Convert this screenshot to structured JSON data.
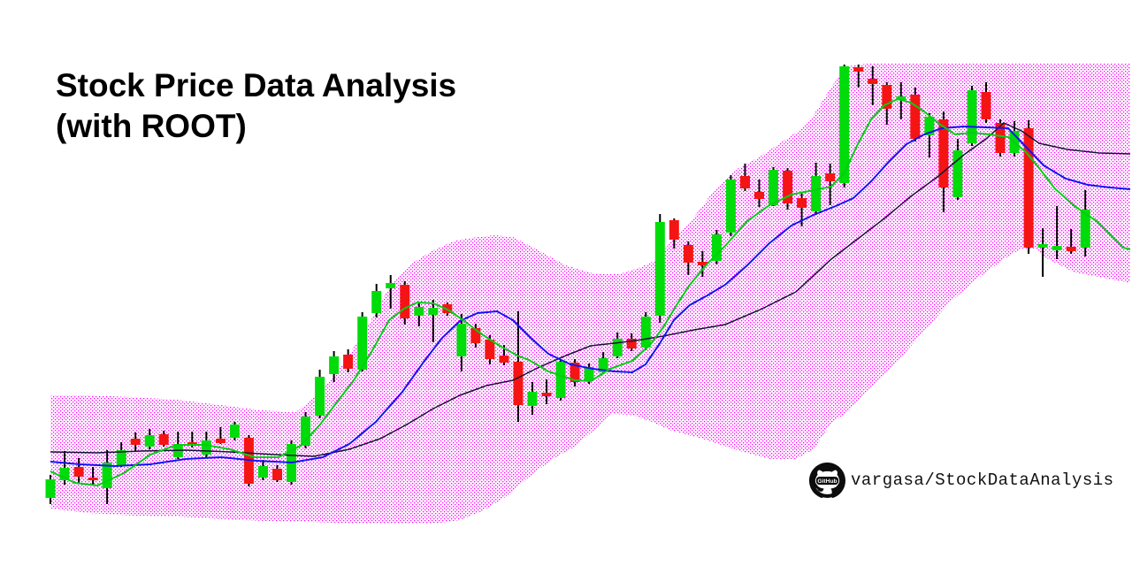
{
  "title": {
    "line1": "Stock Price Data Analysis",
    "line2": "(with ROOT)"
  },
  "attribution": {
    "logo_badge_text": "GitHub",
    "repo_label": "vargasa/StockDataAnalysis"
  },
  "chart_data": {
    "type": "candlestick",
    "title": "Stock Price Data Analysis (with ROOT)",
    "xlabel": "",
    "ylabel": "",
    "axes_visible": false,
    "grid": false,
    "legend_position": "none",
    "note": "No axis ticks or labels are shown in the figure; price values below are in relative units estimated from the plot, x values are plot positions.",
    "colors": {
      "up_candle": "#00dc0a",
      "down_candle": "#f51414",
      "wick": "#000000",
      "ma_fast": "#00ce12",
      "ma_mid": "#1414f0",
      "ma_slow": "#181238",
      "band_dots": "#ff00ff",
      "background": "#ffffff"
    },
    "candles_ohlc": [
      [
        15.4,
        20.6,
        14.0,
        19.6
      ],
      [
        19.4,
        26.0,
        18.4,
        22.2
      ],
      [
        22.4,
        24.4,
        18.6,
        20.2
      ],
      [
        20.0,
        22.4,
        18.4,
        19.4
      ],
      [
        17.6,
        26.2,
        14.0,
        23.4
      ],
      [
        22.6,
        28.0,
        22.4,
        26.2
      ],
      [
        28.8,
        30.2,
        26.0,
        27.4
      ],
      [
        27.0,
        31.0,
        26.4,
        29.6
      ],
      [
        29.8,
        30.6,
        27.0,
        27.4
      ],
      [
        24.6,
        30.4,
        24.2,
        27.6
      ],
      [
        28.0,
        30.4,
        26.8,
        27.4
      ],
      [
        25.2,
        30.4,
        24.6,
        28.4
      ],
      [
        28.8,
        31.4,
        27.6,
        27.8
      ],
      [
        29.0,
        32.6,
        28.4,
        32.0
      ],
      [
        29.0,
        29.6,
        18.0,
        18.6
      ],
      [
        20.0,
        24.0,
        19.4,
        22.6
      ],
      [
        22.0,
        22.8,
        19.0,
        19.4
      ],
      [
        19.0,
        28.4,
        18.4,
        27.6
      ],
      [
        27.2,
        34.8,
        26.6,
        33.8
      ],
      [
        34.0,
        44.4,
        33.4,
        42.8
      ],
      [
        43.4,
        48.6,
        41.6,
        47.4
      ],
      [
        47.8,
        49.0,
        43.8,
        44.6
      ],
      [
        44.4,
        57.4,
        44.0,
        56.4
      ],
      [
        57.2,
        63.8,
        56.2,
        62.2
      ],
      [
        62.8,
        65.8,
        58.2,
        64.0
      ],
      [
        63.6,
        64.4,
        54.6,
        56.0
      ],
      [
        56.6,
        59.6,
        54.2,
        58.6
      ],
      [
        56.8,
        60.2,
        50.6,
        58.4
      ],
      [
        59.2,
        59.6,
        56.6,
        57.2
      ],
      [
        47.4,
        57.0,
        44.0,
        54.8
      ],
      [
        53.8,
        54.8,
        49.4,
        50.4
      ],
      [
        51.2,
        52.2,
        45.6,
        46.8
      ],
      [
        47.6,
        50.0,
        45.4,
        46.0
      ],
      [
        46.2,
        57.6,
        32.6,
        36.4
      ],
      [
        36.2,
        41.6,
        34.2,
        39.4
      ],
      [
        39.2,
        42.2,
        36.6,
        38.4
      ],
      [
        38.0,
        46.8,
        37.4,
        46.2
      ],
      [
        46.0,
        46.8,
        40.6,
        41.6
      ],
      [
        42.0,
        45.8,
        41.2,
        45.0
      ],
      [
        43.8,
        48.4,
        43.4,
        47.0
      ],
      [
        47.4,
        52.8,
        47.0,
        51.4
      ],
      [
        51.4,
        52.6,
        48.6,
        49.2
      ],
      [
        49.4,
        57.4,
        48.8,
        56.4
      ],
      [
        56.6,
        79.6,
        55.0,
        77.8
      ],
      [
        78.2,
        78.6,
        71.8,
        73.8
      ],
      [
        72.6,
        73.4,
        65.8,
        68.6
      ],
      [
        68.8,
        71.2,
        65.4,
        68.0
      ],
      [
        69.0,
        76.0,
        68.2,
        75.0
      ],
      [
        75.4,
        88.4,
        74.6,
        87.4
      ],
      [
        88.2,
        91.0,
        84.8,
        85.4
      ],
      [
        84.6,
        87.4,
        81.2,
        83.0
      ],
      [
        81.6,
        90.2,
        81.4,
        89.6
      ],
      [
        89.4,
        90.0,
        80.6,
        82.0
      ],
      [
        83.2,
        84.2,
        76.8,
        81.0
      ],
      [
        80.2,
        91.2,
        79.4,
        88.2
      ],
      [
        88.8,
        91.0,
        81.6,
        87.0
      ],
      [
        86.6,
        113.4,
        85.6,
        113.0
      ],
      [
        112.8,
        113.4,
        108.2,
        111.8
      ],
      [
        110.2,
        113.0,
        104.2,
        109.0
      ],
      [
        108.8,
        109.4,
        99.8,
        103.4
      ],
      [
        105.4,
        109.4,
        101.0,
        106.2
      ],
      [
        106.6,
        108.2,
        96.0,
        96.6
      ],
      [
        97.4,
        102.4,
        92.4,
        101.6
      ],
      [
        101.0,
        102.8,
        80.0,
        85.6
      ],
      [
        83.4,
        96.6,
        82.8,
        94.0
      ],
      [
        95.6,
        108.6,
        95.0,
        107.6
      ],
      [
        107.2,
        109.4,
        100.2,
        101.0
      ],
      [
        100.2,
        101.0,
        92.6,
        93.4
      ],
      [
        93.4,
        100.6,
        92.6,
        98.4
      ],
      [
        99.0,
        100.8,
        70.6,
        72.0
      ],
      [
        72.0,
        76.4,
        65.4,
        72.8
      ],
      [
        71.4,
        81.4,
        69.4,
        72.4
      ],
      [
        72.2,
        76.2,
        70.6,
        71.2
      ],
      [
        72.0,
        85.0,
        70.0,
        80.6
      ]
    ],
    "overlays": {
      "ma_fast": {
        "name": "fast moving average",
        "points": [
          [
            57,
            21.4
          ],
          [
            85,
            18.8
          ],
          [
            110,
            18.2
          ],
          [
            140,
            21.0
          ],
          [
            170,
            25.2
          ],
          [
            200,
            27.4
          ],
          [
            232,
            27.4
          ],
          [
            260,
            26.4
          ],
          [
            288,
            24.6
          ],
          [
            315,
            24.6
          ],
          [
            340,
            27.2
          ],
          [
            362,
            32.0
          ],
          [
            380,
            36.8
          ],
          [
            400,
            42.0
          ],
          [
            420,
            48.4
          ],
          [
            440,
            55.6
          ],
          [
            457,
            58.2
          ],
          [
            472,
            59.6
          ],
          [
            490,
            59.4
          ],
          [
            508,
            57.8
          ],
          [
            525,
            55.4
          ],
          [
            545,
            52.4
          ],
          [
            565,
            49.8
          ],
          [
            585,
            47.6
          ],
          [
            598,
            46.6
          ],
          [
            620,
            44.0
          ],
          [
            650,
            42.0
          ],
          [
            668,
            41.8
          ],
          [
            690,
            44.6
          ],
          [
            715,
            46.4
          ],
          [
            735,
            50.0
          ],
          [
            750,
            54.0
          ],
          [
            765,
            59.0
          ],
          [
            780,
            63.6
          ],
          [
            800,
            68.4
          ],
          [
            820,
            72.4
          ],
          [
            845,
            78.0
          ],
          [
            870,
            81.6
          ],
          [
            895,
            84.0
          ],
          [
            920,
            85.0
          ],
          [
            940,
            85.8
          ],
          [
            955,
            89.0
          ],
          [
            970,
            95.4
          ],
          [
            985,
            101.0
          ],
          [
            1000,
            104.2
          ],
          [
            1015,
            105.6
          ],
          [
            1030,
            104.8
          ],
          [
            1045,
            102.8
          ],
          [
            1062,
            100.0
          ],
          [
            1080,
            97.6
          ],
          [
            1100,
            98.0
          ],
          [
            1118,
            97.6
          ],
          [
            1140,
            97.0
          ],
          [
            1160,
            93.6
          ],
          [
            1175,
            90.0
          ],
          [
            1193,
            85.3
          ],
          [
            1215,
            81.4
          ],
          [
            1240,
            78.0
          ],
          [
            1270,
            72.0
          ],
          [
            1278,
            71.6
          ]
        ]
      },
      "ma_mid": {
        "name": "medium moving average",
        "points": [
          [
            57,
            23.6
          ],
          [
            90,
            23.0
          ],
          [
            130,
            22.6
          ],
          [
            170,
            23.0
          ],
          [
            210,
            24.2
          ],
          [
            250,
            24.6
          ],
          [
            290,
            23.8
          ],
          [
            330,
            23.4
          ],
          [
            365,
            24.6
          ],
          [
            395,
            27.6
          ],
          [
            425,
            32.6
          ],
          [
            455,
            39.4
          ],
          [
            480,
            46.4
          ],
          [
            500,
            51.6
          ],
          [
            520,
            55.4
          ],
          [
            540,
            57.2
          ],
          [
            562,
            57.6
          ],
          [
            580,
            55.6
          ],
          [
            600,
            51.6
          ],
          [
            620,
            48.0
          ],
          [
            645,
            45.6
          ],
          [
            670,
            44.6
          ],
          [
            695,
            44.0
          ],
          [
            715,
            43.8
          ],
          [
            730,
            45.6
          ],
          [
            745,
            50.0
          ],
          [
            762,
            55.6
          ],
          [
            780,
            59.0
          ],
          [
            800,
            61.2
          ],
          [
            820,
            63.6
          ],
          [
            845,
            68.0
          ],
          [
            870,
            73.0
          ],
          [
            895,
            77.0
          ],
          [
            920,
            79.4
          ],
          [
            945,
            81.4
          ],
          [
            965,
            83.2
          ],
          [
            985,
            87.0
          ],
          [
            1005,
            91.4
          ],
          [
            1025,
            95.4
          ],
          [
            1045,
            97.6
          ],
          [
            1065,
            99.0
          ],
          [
            1090,
            99.4
          ],
          [
            1115,
            99.2
          ],
          [
            1140,
            99.0
          ],
          [
            1160,
            94.8
          ],
          [
            1180,
            90.6
          ],
          [
            1205,
            87.6
          ],
          [
            1230,
            86.2
          ],
          [
            1255,
            85.6
          ],
          [
            1278,
            85.2
          ]
        ]
      },
      "ma_slow": {
        "name": "slow moving average",
        "points": [
          [
            57,
            25.8
          ],
          [
            110,
            25.6
          ],
          [
            160,
            26.0
          ],
          [
            210,
            26.2
          ],
          [
            260,
            25.8
          ],
          [
            310,
            25.2
          ],
          [
            355,
            24.8
          ],
          [
            395,
            26.4
          ],
          [
            430,
            28.8
          ],
          [
            460,
            32.0
          ],
          [
            490,
            35.6
          ],
          [
            520,
            38.6
          ],
          [
            550,
            40.8
          ],
          [
            580,
            42.0
          ],
          [
            610,
            45.0
          ],
          [
            640,
            47.6
          ],
          [
            668,
            49.8
          ],
          [
            695,
            50.4
          ],
          [
            720,
            51.0
          ],
          [
            750,
            52.0
          ],
          [
            785,
            53.4
          ],
          [
            820,
            54.6
          ],
          [
            860,
            58.0
          ],
          [
            900,
            62.0
          ],
          [
            940,
            69.4
          ],
          [
            970,
            74.0
          ],
          [
            1000,
            78.6
          ],
          [
            1030,
            83.6
          ],
          [
            1060,
            88.0
          ],
          [
            1090,
            93.0
          ],
          [
            1115,
            96.6
          ],
          [
            1135,
            100.2
          ],
          [
            1155,
            98.4
          ],
          [
            1175,
            95.6
          ],
          [
            1207,
            94.2
          ],
          [
            1243,
            93.4
          ],
          [
            1278,
            93.2
          ]
        ]
      },
      "band": {
        "name": "bollinger band (dotted fill)",
        "upper": [
          [
            57,
            38.6
          ],
          [
            100,
            38.6
          ],
          [
            150,
            38.2
          ],
          [
            200,
            37.6
          ],
          [
            250,
            36.4
          ],
          [
            295,
            35.2
          ],
          [
            335,
            34.8
          ],
          [
            365,
            40.0
          ],
          [
            390,
            46.4
          ],
          [
            415,
            54.0
          ],
          [
            440,
            63.0
          ],
          [
            465,
            68.4
          ],
          [
            490,
            71.4
          ],
          [
            515,
            73.6
          ],
          [
            540,
            74.4
          ],
          [
            560,
            74.8
          ],
          [
            580,
            74.4
          ],
          [
            607,
            71.6
          ],
          [
            640,
            68.0
          ],
          [
            670,
            66.2
          ],
          [
            700,
            66.0
          ],
          [
            722,
            67.4
          ],
          [
            740,
            69.0
          ],
          [
            760,
            73.6
          ],
          [
            785,
            79.0
          ],
          [
            810,
            85.6
          ],
          [
            835,
            90.0
          ],
          [
            858,
            92.4
          ],
          [
            880,
            95.4
          ],
          [
            900,
            98.0
          ],
          [
            920,
            102.0
          ],
          [
            940,
            108.4
          ],
          [
            958,
            113.0
          ],
          [
            980,
            113.6
          ],
          [
            1278,
            113.6
          ]
        ],
        "lower": [
          [
            57,
            13.0
          ],
          [
            100,
            12.0
          ],
          [
            150,
            11.4
          ],
          [
            200,
            11.2
          ],
          [
            250,
            10.6
          ],
          [
            300,
            10.2
          ],
          [
            350,
            10.0
          ],
          [
            400,
            9.6
          ],
          [
            450,
            9.6
          ],
          [
            490,
            9.6
          ],
          [
            520,
            10.4
          ],
          [
            545,
            12.4
          ],
          [
            570,
            15.4
          ],
          [
            600,
            20.4
          ],
          [
            625,
            24.2
          ],
          [
            650,
            27.0
          ],
          [
            672,
            30.8
          ],
          [
            690,
            34.4
          ],
          [
            715,
            34.2
          ],
          [
            737,
            32.6
          ],
          [
            757,
            30.8
          ],
          [
            797,
            28.6
          ],
          [
            837,
            26.0
          ],
          [
            870,
            24.2
          ],
          [
            900,
            24.2
          ],
          [
            920,
            26.4
          ],
          [
            940,
            32.4
          ],
          [
            960,
            35.0
          ],
          [
            975,
            38.6
          ],
          [
            1007,
            44.6
          ],
          [
            1040,
            52.0
          ],
          [
            1073,
            59.4
          ],
          [
            1105,
            65.0
          ],
          [
            1135,
            69.4
          ],
          [
            1155,
            71.8
          ],
          [
            1170,
            71.8
          ],
          [
            1185,
            69.4
          ],
          [
            1215,
            66.4
          ],
          [
            1243,
            65.4
          ],
          [
            1278,
            64.0
          ]
        ]
      }
    }
  }
}
